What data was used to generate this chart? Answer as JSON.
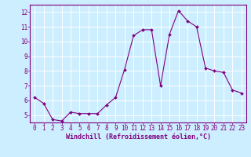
{
  "x": [
    0,
    1,
    2,
    3,
    4,
    5,
    6,
    7,
    8,
    9,
    10,
    11,
    12,
    13,
    14,
    15,
    16,
    17,
    18,
    19,
    20,
    21,
    22,
    23
  ],
  "y": [
    6.2,
    5.8,
    4.7,
    4.6,
    5.2,
    5.1,
    5.1,
    5.1,
    5.7,
    6.2,
    8.1,
    10.4,
    10.8,
    10.8,
    7.0,
    10.5,
    12.1,
    11.4,
    11.0,
    8.2,
    8.0,
    7.9,
    6.7,
    6.5
  ],
  "line_color": "#800080",
  "marker": "D",
  "marker_size": 2,
  "bg_color": "#cceeff",
  "grid_color": "#ffffff",
  "xlabel": "Windchill (Refroidissement éolien,°C)",
  "tick_color": "#800080",
  "label_color": "#800080",
  "ylim": [
    4.5,
    12.5
  ],
  "xlim": [
    -0.5,
    23.5
  ],
  "yticks": [
    5,
    6,
    7,
    8,
    9,
    10,
    11,
    12
  ],
  "xticks": [
    0,
    1,
    2,
    3,
    4,
    5,
    6,
    7,
    8,
    9,
    10,
    11,
    12,
    13,
    14,
    15,
    16,
    17,
    18,
    19,
    20,
    21,
    22,
    23
  ],
  "spine_color": "#800080",
  "tick_fontsize": 5.5,
  "xlabel_fontsize": 6.0,
  "linewidth": 0.8
}
